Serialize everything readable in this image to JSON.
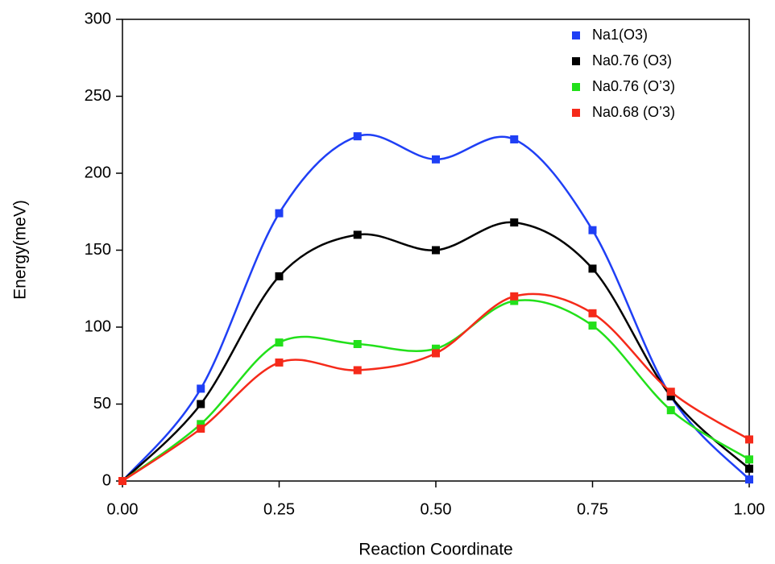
{
  "chart_data": {
    "type": "line",
    "xlabel": "Reaction Coordinate",
    "ylabel": "Energy(meV)",
    "x": [
      0,
      0.125,
      0.25,
      0.375,
      0.5,
      0.625,
      0.75,
      0.875,
      1.0
    ],
    "series": [
      {
        "name": "Na1(O3)",
        "color": "#1f3ff5",
        "values": [
          0,
          60,
          174,
          224,
          209,
          222,
          163,
          55,
          1
        ]
      },
      {
        "name": "Na0.76 (O3)",
        "color": "#000000",
        "values": [
          0,
          50,
          133,
          160,
          150,
          168,
          138,
          55,
          8
        ]
      },
      {
        "name": "Na0.76 (O’3)",
        "color": "#22e01a",
        "values": [
          0,
          37,
          90,
          89,
          86,
          117,
          101,
          46,
          14
        ]
      },
      {
        "name": "Na0.68 (O’3)",
        "color": "#f52a1a",
        "values": [
          0,
          34,
          77,
          72,
          83,
          120,
          109,
          58,
          27
        ]
      }
    ],
    "xlim": [
      0,
      1
    ],
    "ylim": [
      0,
      300
    ],
    "xticks": [
      {
        "value": 0,
        "label": "0.00"
      },
      {
        "value": 0.25,
        "label": "0.25"
      },
      {
        "value": 0.5,
        "label": "0.50"
      },
      {
        "value": 0.75,
        "label": "0.75"
      },
      {
        "value": 1,
        "label": "1.00"
      }
    ],
    "yticks": [
      0,
      50,
      100,
      150,
      200,
      250,
      300
    ],
    "legend": "upper right",
    "smooth": true
  }
}
